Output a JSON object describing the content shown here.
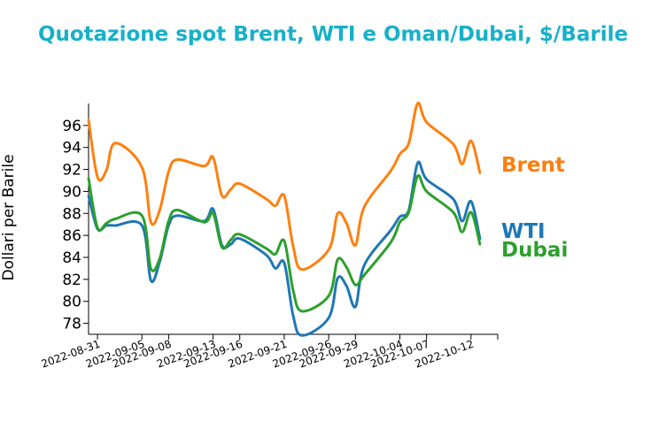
{
  "chart_data": {
    "type": "line",
    "title": "Quotazione spot Brent, WTI e Oman/Dubai, $/Barile",
    "xlabel": "",
    "ylabel": "Dollari per Barile",
    "ylim": [
      77,
      98
    ],
    "xlim": [
      "2022-08-30",
      "2022-10-15"
    ],
    "yticks": [
      78,
      80,
      82,
      84,
      86,
      88,
      90,
      92,
      94,
      96
    ],
    "xticks": [
      "2022-08-31",
      "2022-09-05",
      "2022-09-08",
      "2022-09-13",
      "2022-09-16",
      "2022-09-21",
      "2022-09-26",
      "2022-09-29",
      "2022-10-04",
      "2022-10-07",
      "2022-10-12"
    ],
    "grid": false,
    "legend": "labels at line ends, right",
    "colors": {
      "title": "#17b0c8",
      "Brent": "#ff7f0e",
      "WTI": "#1f77b4",
      "Dubai": "#2ca02c"
    },
    "x": [
      "2022-08-30",
      "2022-08-31",
      "2022-09-01",
      "2022-09-02",
      "2022-09-05",
      "2022-09-06",
      "2022-09-07",
      "2022-09-08",
      "2022-09-09",
      "2022-09-12",
      "2022-09-13",
      "2022-09-14",
      "2022-09-15",
      "2022-09-16",
      "2022-09-19",
      "2022-09-20",
      "2022-09-21",
      "2022-09-22",
      "2022-09-23",
      "2022-09-26",
      "2022-09-27",
      "2022-09-28",
      "2022-09-29",
      "2022-09-30",
      "2022-10-03",
      "2022-10-04",
      "2022-10-05",
      "2022-10-06",
      "2022-10-07",
      "2022-10-10",
      "2022-10-11",
      "2022-10-12",
      "2022-10-13",
      "2022-10-14"
    ],
    "series": [
      {
        "name": "Brent",
        "values": [
          96.5,
          91.3,
          91.9,
          94.4,
          92.2,
          87.2,
          88.3,
          91.8,
          92.9,
          92.3,
          93.1,
          89.6,
          90.2,
          90.7,
          89.3,
          88.7,
          89.6,
          85.0,
          82.9,
          84.7,
          88.0,
          87.1,
          85.1,
          88.6,
          91.9,
          93.4,
          94.4,
          98.0,
          96.3,
          94.3,
          92.5,
          94.6,
          91.7,
          null
        ]
      },
      {
        "name": "WTI",
        "values": [
          89.6,
          86.6,
          86.9,
          86.9,
          86.9,
          81.9,
          83.6,
          86.9,
          87.8,
          87.3,
          88.4,
          85.1,
          85.2,
          85.7,
          84.2,
          83.0,
          83.5,
          78.7,
          76.9,
          78.5,
          82.1,
          81.4,
          79.5,
          83.3,
          86.5,
          87.7,
          88.3,
          92.6,
          91.1,
          89.3,
          87.3,
          89.1,
          85.7,
          null
        ]
      },
      {
        "name": "Dubai",
        "values": [
          91.2,
          86.7,
          87.1,
          87.5,
          87.8,
          83.0,
          83.9,
          87.3,
          88.3,
          87.2,
          88.0,
          84.9,
          85.6,
          86.1,
          84.8,
          84.3,
          85.5,
          81.0,
          79.1,
          80.5,
          83.8,
          83.1,
          81.5,
          82.4,
          85.4,
          87.2,
          88.1,
          91.4,
          90.0,
          88.1,
          86.3,
          88.1,
          85.2,
          null
        ]
      }
    ]
  }
}
